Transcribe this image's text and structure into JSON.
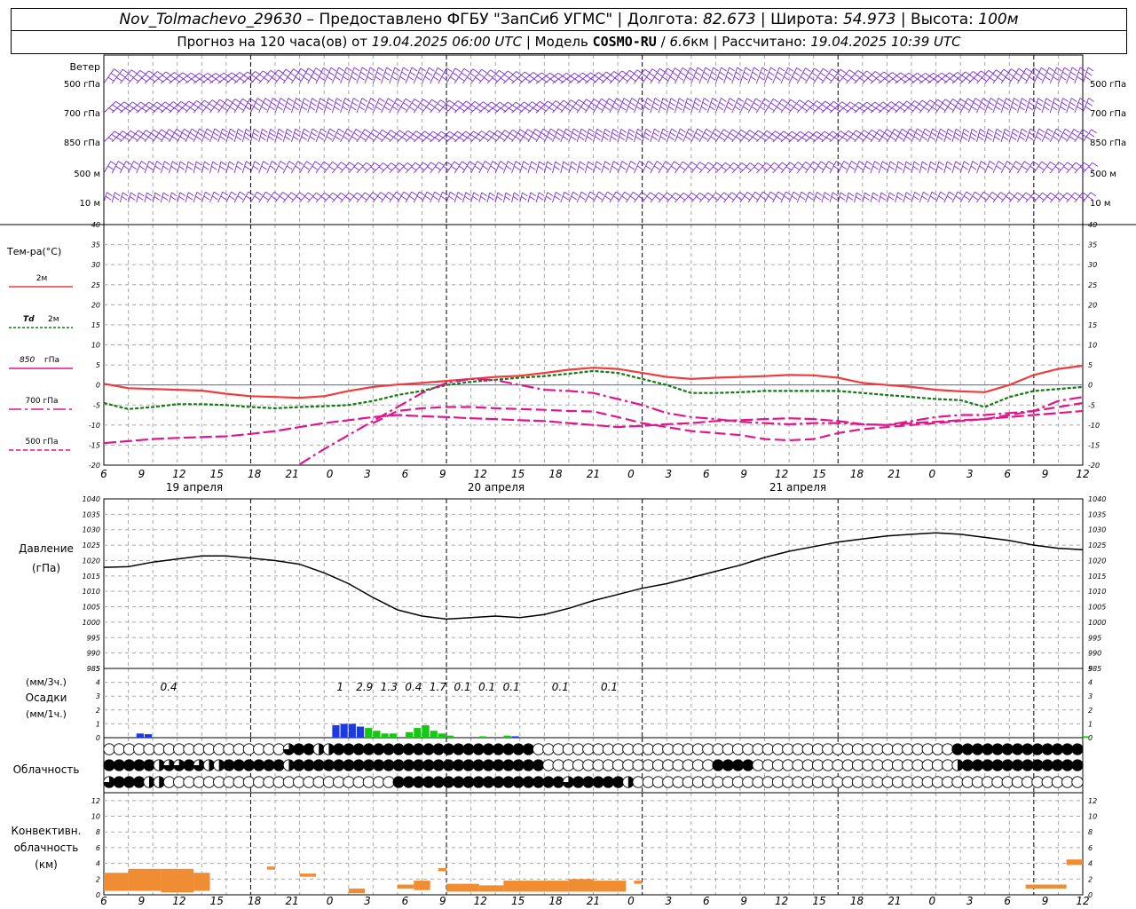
{
  "header": {
    "station": "Nov_Tolmachevo_29630",
    "dash": " – ",
    "provider": "Предоставлено ФГБУ \"ЗапСиб УГМС\"",
    "lon_label": "Долгота:",
    "lon": "82.673",
    "lat_label": "Широта:",
    "lat": "54.973",
    "alt_label": "Высота:",
    "alt": "100м",
    "sep": " | ",
    "forecast_label": "Прогноз на 120 часа(ов) от",
    "forecast_from": "19.04.2025 06:00 UTC",
    "model_label": "Модель",
    "model": "COSMO-RU",
    "resolution": "6.6",
    "res_unit": "км",
    "computed_label": "Рассчитано:",
    "computed": "19.04.2025 10:39 UTC"
  },
  "colors": {
    "wind": "#7a2ed6",
    "t2m": "#f03c3c",
    "td2m": "#117a11",
    "t850": "#e0178c",
    "t700": "#e0178c",
    "t500": "#e0178c",
    "pressure": "#000000",
    "precip_blue": "#1a3be0",
    "precip_green": "#14c814",
    "conv": "#f08c32",
    "grid": "#a8a8a8"
  },
  "wind_panel": {
    "title": "Ветер",
    "levels": [
      "500 гПа",
      "700 гПа",
      "850 гПа",
      "500 м",
      "10  м"
    ],
    "right_levels": [
      "500 гПа",
      "700 гПа",
      "850 гПа",
      "500 м",
      "10  м"
    ]
  },
  "time_axis": {
    "hour_labels": [
      "6",
      "9",
      "12",
      "15",
      "18",
      "21",
      "0",
      "3",
      "6",
      "9",
      "12",
      "15",
      "18",
      "21",
      "0",
      "3",
      "6",
      "9",
      "12",
      "15",
      "18",
      "21",
      "0",
      "3",
      "6",
      "9",
      "12"
    ],
    "date_labels": [
      "19 апреля",
      "20 апреля",
      "21 апреля"
    ]
  },
  "legend": {
    "temp_title": "Тем-ра(°C)",
    "t2m": "2м",
    "td_sym": "Td",
    "td_lvl": "2м",
    "t850_num": "850",
    "t850_unit": "гПа",
    "t700": "700 гПа",
    "t500": "500 гПа",
    "pressure_title": "Давление",
    "pressure_unit": "(гПа)",
    "precip_unit3": "(мм/3ч.)",
    "precip_title": "Осадки",
    "precip_unit1": "(мм/1ч.)",
    "cloud_title": "Облачность",
    "conv_title1": "Конвективн.",
    "conv_title2": "облачность",
    "conv_unit": "(км)"
  },
  "chart_data": [
    {
      "type": "line",
      "name": "temperature",
      "x_hours": [
        0,
        3,
        6,
        9,
        12,
        15,
        18,
        21,
        24,
        27,
        30,
        33,
        36,
        39,
        42,
        45,
        48,
        51,
        54,
        57,
        60,
        63,
        66,
        69,
        72,
        75,
        78,
        81,
        84,
        87,
        90,
        93,
        96,
        99,
        102,
        105,
        108,
        111,
        114,
        117,
        120
      ],
      "series": [
        {
          "name": "2м",
          "values": [
            0.3,
            -0.8,
            -1.0,
            -1.2,
            -1.4,
            -2.2,
            -2.8,
            -3.0,
            -3.2,
            -2.8,
            -1.5,
            -0.5,
            0.1,
            0.5,
            1.0,
            1.5,
            2.0,
            2.3,
            3.0,
            3.8,
            4.3,
            4.0,
            3.0,
            2.0,
            1.5,
            1.8,
            2.0,
            2.2,
            2.5,
            2.4,
            1.8,
            0.5,
            0.0,
            -0.5,
            -1.2,
            -1.6,
            -1.8,
            0.0,
            2.5,
            4.0,
            4.8
          ]
        },
        {
          "name": "Td 2м",
          "values": [
            -4.5,
            -6.0,
            -5.5,
            -4.8,
            -4.8,
            -5.0,
            -5.5,
            -5.8,
            -5.5,
            -5.3,
            -5.0,
            -4.0,
            -2.5,
            -1.5,
            0.0,
            0.8,
            1.3,
            1.8,
            2.2,
            2.8,
            3.5,
            3.0,
            1.5,
            0.0,
            -2.0,
            -2.0,
            -1.8,
            -1.5,
            -1.5,
            -1.5,
            -1.5,
            -2.0,
            -2.5,
            -3.0,
            -3.5,
            -3.8,
            -5.5,
            -3.0,
            -1.5,
            -1.0,
            -0.5
          ]
        },
        {
          "name": "850 гПа",
          "values": [
            null,
            null,
            null,
            null,
            null,
            null,
            null,
            null,
            -19.8,
            -16.0,
            -12.5,
            -9.0,
            -5.5,
            -2.0,
            0.5,
            1.5,
            1.2,
            0.0,
            -1.2,
            -1.5,
            -2.0,
            -3.5,
            -5.0,
            -7.0,
            -8.0,
            -8.5,
            -9.2,
            -9.5,
            -9.8,
            -9.5,
            -9.5,
            -9.8,
            -10.0,
            -9.0,
            -8.0,
            -7.5,
            -7.5,
            -7.0,
            -6.5,
            -4.0,
            -3.0
          ]
        },
        {
          "name": "700 гПа",
          "values": [
            null,
            null,
            null,
            null,
            null,
            null,
            null,
            null,
            null,
            null,
            null,
            -9.5,
            -6.5,
            -5.8,
            -5.5,
            -5.5,
            -5.8,
            -6.0,
            -6.2,
            -6.5,
            -6.6,
            -8.0,
            -9.5,
            -10.5,
            -11.5,
            -12.0,
            -12.5,
            -13.5,
            -13.8,
            -13.5,
            -12.0,
            -11.0,
            -10.5,
            -10.0,
            -9.5,
            -9.0,
            -8.5,
            -7.5,
            -6.5,
            -5.5,
            -4.5
          ]
        },
        {
          "name": "500 гПа",
          "values": [
            -14.5,
            -14.0,
            -13.5,
            -13.2,
            -13.0,
            -12.8,
            -12.2,
            -11.5,
            -10.5,
            -9.5,
            -8.8,
            -8.0,
            -7.5,
            -7.8,
            -8.0,
            -8.3,
            -8.5,
            -8.8,
            -9.0,
            -9.5,
            -10.0,
            -10.5,
            -10.2,
            -9.8,
            -9.5,
            -9.0,
            -8.8,
            -8.5,
            -8.3,
            -8.5,
            -9.0,
            -9.8,
            -10.0,
            -9.5,
            -9.2,
            -8.8,
            -8.5,
            -8.0,
            -7.5,
            -7.0,
            -6.5
          ]
        }
      ],
      "ylim": [
        -20,
        40
      ],
      "yticks": [
        -20,
        -15,
        -10,
        -5,
        0,
        5,
        10,
        15,
        20,
        25,
        30,
        35,
        40
      ]
    },
    {
      "type": "line",
      "name": "pressure",
      "x_hours": [
        0,
        3,
        6,
        9,
        12,
        15,
        18,
        21,
        24,
        27,
        30,
        33,
        36,
        39,
        42,
        45,
        48,
        51,
        54,
        57,
        60,
        63,
        66,
        69,
        72,
        75,
        78,
        81,
        84,
        87,
        90,
        93,
        96,
        99,
        102,
        105,
        108,
        111,
        114,
        117,
        120
      ],
      "series": [
        {
          "values": [
            1017.8,
            1018.0,
            1019.5,
            1020.5,
            1021.5,
            1021.5,
            1020.8,
            1020.0,
            1018.8,
            1016.0,
            1012.5,
            1008.0,
            1004.0,
            1002.0,
            1001.0,
            1001.5,
            1002.0,
            1001.5,
            1002.5,
            1004.5,
            1007.0,
            1009.0,
            1011.0,
            1012.5,
            1014.5,
            1016.5,
            1018.5,
            1021.0,
            1023.0,
            1024.5,
            1026.0,
            1027.0,
            1028.0,
            1028.5,
            1029.0,
            1028.5,
            1027.5,
            1026.5,
            1025.0,
            1024.0,
            1023.5
          ]
        }
      ],
      "ylim": [
        985,
        1040
      ],
      "yticks": [
        985,
        990,
        995,
        1000,
        1005,
        1010,
        1015,
        1020,
        1025,
        1030,
        1035,
        1040
      ]
    },
    {
      "type": "bar",
      "name": "precipitation",
      "labels": [
        {
          "hour": 6,
          "text": "0.4"
        },
        {
          "hour": 27,
          "text": "1"
        },
        {
          "hour": 30,
          "text": "2.9"
        },
        {
          "hour": 33,
          "text": "1.3"
        },
        {
          "hour": 36,
          "text": "0.4"
        },
        {
          "hour": 39,
          "text": "1.7"
        },
        {
          "hour": 42,
          "text": "0.1"
        },
        {
          "hour": 45,
          "text": "0.1"
        },
        {
          "hour": 48,
          "text": "0.1"
        },
        {
          "hour": 54,
          "text": "0.1"
        },
        {
          "hour": 60,
          "text": "0.1"
        }
      ],
      "bars": [
        {
          "hour": 4,
          "value": 0.3,
          "kind": "blue"
        },
        {
          "hour": 5,
          "value": 0.25,
          "kind": "blue"
        },
        {
          "hour": 28,
          "value": 0.9,
          "kind": "blue"
        },
        {
          "hour": 29,
          "value": 1.0,
          "kind": "blue"
        },
        {
          "hour": 30,
          "value": 1.0,
          "kind": "blue"
        },
        {
          "hour": 31,
          "value": 0.8,
          "kind": "blue"
        },
        {
          "hour": 32,
          "value": 0.7,
          "kind": "green"
        },
        {
          "hour": 33,
          "value": 0.5,
          "kind": "green"
        },
        {
          "hour": 34,
          "value": 0.3,
          "kind": "green"
        },
        {
          "hour": 35,
          "value": 0.3,
          "kind": "green"
        },
        {
          "hour": 37,
          "value": 0.4,
          "kind": "green"
        },
        {
          "hour": 38,
          "value": 0.7,
          "kind": "green"
        },
        {
          "hour": 39,
          "value": 0.9,
          "kind": "green"
        },
        {
          "hour": 40,
          "value": 0.5,
          "kind": "green"
        },
        {
          "hour": 41,
          "value": 0.3,
          "kind": "green"
        },
        {
          "hour": 42,
          "value": 0.15,
          "kind": "green"
        },
        {
          "hour": 46,
          "value": 0.1,
          "kind": "green"
        },
        {
          "hour": 49,
          "value": 0.15,
          "kind": "green"
        },
        {
          "hour": 50,
          "value": 0.1,
          "kind": "blue"
        },
        {
          "hour": 120,
          "value": 0.1,
          "kind": "green"
        }
      ],
      "ylim": [
        0,
        5
      ],
      "yticks": [
        0,
        1,
        2,
        3,
        4,
        5
      ]
    },
    {
      "type": "table",
      "name": "cloudiness",
      "rows": [
        "00000000600000000034422444444444444444444448000000000000000000000000000000000000000004444444444444",
        "44444233432244444424444444444444444444444444000000000000000004444000000000000000000002444444444444",
        "34442200000000000000000000000444444444444444443444442000000000000000000000000000000000000000000000"
      ]
    },
    {
      "type": "bar",
      "name": "convective_cloudiness",
      "segments": [
        {
          "from": 0,
          "to": 3,
          "bottom": 0.5,
          "top": 2.8
        },
        {
          "from": 3,
          "to": 7,
          "bottom": 0.5,
          "top": 3.3
        },
        {
          "from": 7,
          "to": 11,
          "bottom": 0.3,
          "top": 3.3
        },
        {
          "from": 11,
          "to": 13,
          "bottom": 0.5,
          "top": 2.8
        },
        {
          "from": 20,
          "to": 21,
          "bottom": 3.2,
          "top": 3.6
        },
        {
          "from": 24,
          "to": 26,
          "bottom": 2.3,
          "top": 2.7
        },
        {
          "from": 30,
          "to": 32,
          "bottom": 0.2,
          "top": 0.8
        },
        {
          "from": 36,
          "to": 38,
          "bottom": 0.8,
          "top": 1.3
        },
        {
          "from": 38,
          "to": 40,
          "bottom": 0.6,
          "top": 1.8
        },
        {
          "from": 41,
          "to": 42,
          "bottom": 3.0,
          "top": 3.4
        },
        {
          "from": 42,
          "to": 46,
          "bottom": 0.4,
          "top": 1.4
        },
        {
          "from": 46,
          "to": 49,
          "bottom": 0.4,
          "top": 1.2
        },
        {
          "from": 49,
          "to": 57,
          "bottom": 0.4,
          "top": 1.8
        },
        {
          "from": 57,
          "to": 60,
          "bottom": 0.4,
          "top": 2.0
        },
        {
          "from": 60,
          "to": 64,
          "bottom": 0.4,
          "top": 1.8
        },
        {
          "from": 65,
          "to": 66,
          "bottom": 1.4,
          "top": 1.8
        },
        {
          "from": 113,
          "to": 118,
          "bottom": 0.8,
          "top": 1.3
        },
        {
          "from": 118,
          "to": 120,
          "bottom": 3.8,
          "top": 4.5
        }
      ],
      "ylim": [
        0,
        13
      ],
      "yticks": [
        0,
        2,
        4,
        6,
        8,
        10,
        12
      ]
    }
  ]
}
